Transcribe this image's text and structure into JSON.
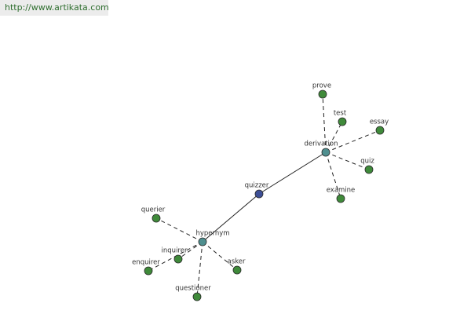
{
  "header": {
    "url": "http://www.artikata.com"
  },
  "nodes": [
    {
      "label": "quizzer"
    },
    {
      "label": "hypernym"
    },
    {
      "label": "derivation"
    },
    {
      "label": "prove"
    },
    {
      "label": "test"
    },
    {
      "label": "essay"
    },
    {
      "label": "quiz"
    },
    {
      "label": "examine"
    },
    {
      "label": "querier"
    },
    {
      "label": "inquirer"
    },
    {
      "label": "enquirer"
    },
    {
      "label": "asker"
    },
    {
      "label": "questioner"
    }
  ]
}
